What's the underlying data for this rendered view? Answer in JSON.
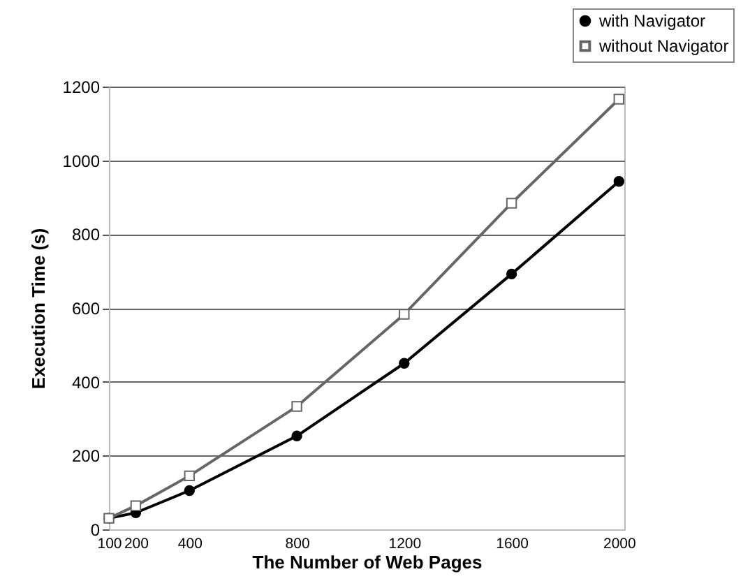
{
  "chart_data": {
    "type": "line",
    "xlabel": "The Number of Web Pages",
    "ylabel": "Execution Time (s)",
    "x": [
      100,
      200,
      400,
      800,
      1200,
      1600,
      2000
    ],
    "series": [
      {
        "name": "with Navigator",
        "color": "#000000",
        "marker": "circle",
        "values": [
          30,
          45,
          105,
          253,
          450,
          692,
          943
        ]
      },
      {
        "name": "without Navigator",
        "color": "#666666",
        "marker": "square",
        "values": [
          30,
          64,
          145,
          333,
          583,
          884,
          1166
        ]
      }
    ],
    "xlim": [
      100,
      2020
    ],
    "xticks": [
      100,
      200,
      400,
      800,
      1200,
      1600,
      2000
    ],
    "ylim": [
      0,
      1200
    ],
    "yticks": [
      0,
      200,
      400,
      600,
      800,
      1000,
      1200
    ],
    "grid": "y",
    "legend": "top right"
  }
}
